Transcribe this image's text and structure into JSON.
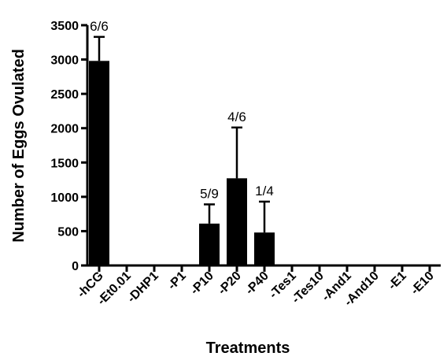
{
  "chart_data": {
    "type": "bar",
    "title": "",
    "xlabel": "Treatments",
    "ylabel": "Number of Eggs Ovulated",
    "ylim": [
      0,
      3500
    ],
    "yticks": [
      0,
      500,
      1000,
      1500,
      2000,
      2500,
      3000,
      3500
    ],
    "categories": [
      "-hCG",
      "-Et0.01",
      "-DHP1",
      "-P1",
      "-P10",
      "-P20",
      "-P40",
      "-Tes1",
      "-Tes10",
      "-And1",
      "-And10",
      "-E1",
      "-E10"
    ],
    "values": [
      2980,
      0,
      0,
      0,
      610,
      1270,
      480,
      0,
      0,
      0,
      0,
      0,
      0
    ],
    "error_upper": [
      3330,
      null,
      null,
      null,
      890,
      2010,
      930,
      null,
      null,
      null,
      null,
      null,
      null
    ],
    "bar_labels": [
      "6/6",
      "",
      "",
      "",
      "5/9",
      "4/6",
      "1/4",
      "",
      "",
      "",
      "",
      "",
      ""
    ],
    "bar_color": "#000000",
    "grid": false
  }
}
